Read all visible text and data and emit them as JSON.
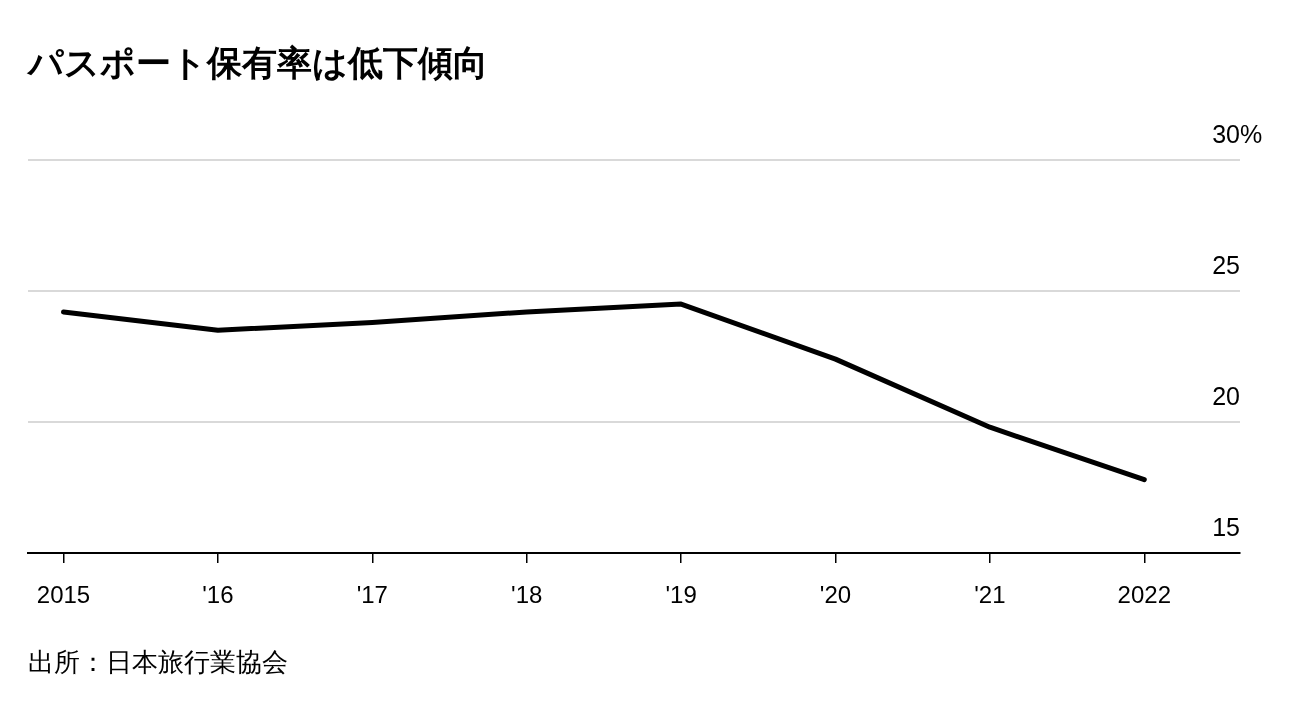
{
  "chart_data": {
    "type": "line",
    "title": "パスポート保有率は低下傾向",
    "annotations": [
      "出所：日本旅行業協会"
    ],
    "x": [
      2015,
      2016,
      2017,
      2018,
      2019,
      2020,
      2021,
      2022
    ],
    "series": [
      {
        "color": "#000000",
        "values": [
          24.2,
          23.5,
          23.8,
          24.2,
          24.5,
          22.4,
          19.8,
          17.8
        ]
      }
    ],
    "xlim": [
      2014.77,
      2022.62
    ],
    "xticks": [
      {
        "value": 2015,
        "label": "2015"
      },
      {
        "value": 2016,
        "label": "'16"
      },
      {
        "value": 2017,
        "label": "'17"
      },
      {
        "value": 2018,
        "label": "'18"
      },
      {
        "value": 2019,
        "label": "'19"
      },
      {
        "value": 2020,
        "label": "'20"
      },
      {
        "value": 2021,
        "label": "'21"
      },
      {
        "value": 2022,
        "label": "2022"
      }
    ],
    "ylim": [
      15,
      30
    ],
    "yticks": [
      15,
      20,
      25,
      {
        "value": 30,
        "label": "30%"
      }
    ],
    "grid": "y",
    "legend": false,
    "marker": "none",
    "line_style": "solid"
  }
}
